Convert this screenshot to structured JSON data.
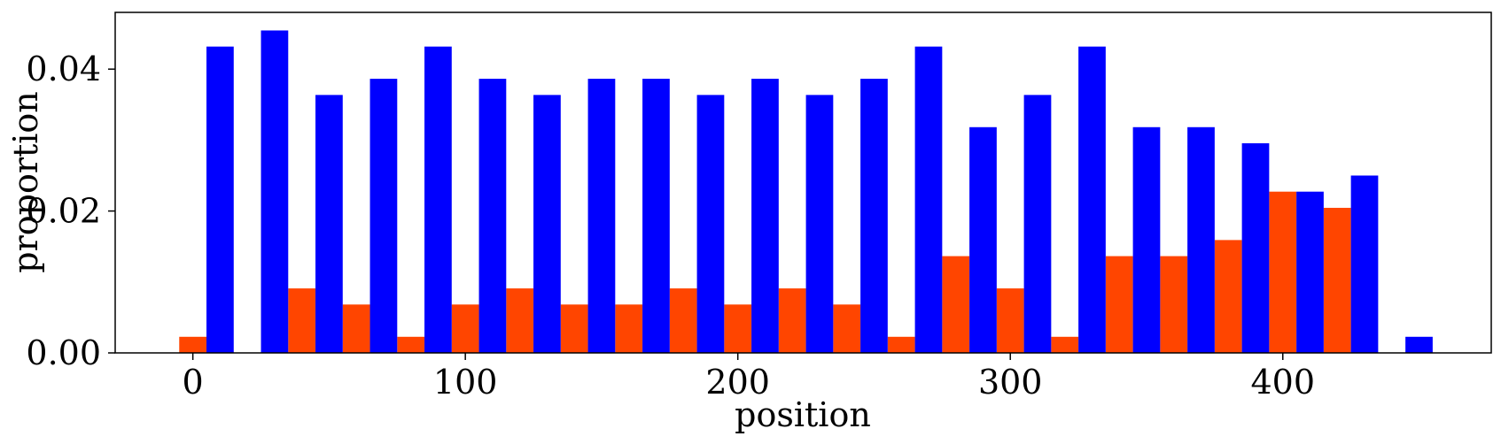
{
  "chart_data": {
    "type": "bar",
    "title": "",
    "xlabel": "position",
    "ylabel": "proportion",
    "xlim": [
      -28.5,
      476.5
    ],
    "ylim": [
      0,
      0.048
    ],
    "x_ticks": [
      0,
      100,
      200,
      300,
      400
    ],
    "x_tick_labels": [
      "0",
      "100",
      "200",
      "300",
      "400"
    ],
    "y_ticks": [
      0,
      0.02,
      0.04
    ],
    "y_tick_labels": [
      "0.00",
      "0.02",
      "0.04"
    ],
    "grid": false,
    "legend": "none",
    "bin_width": 20,
    "bar_width": 10,
    "series": [
      {
        "color": "#FF4500",
        "offset": 0,
        "x": [
          0,
          20,
          40,
          60,
          80,
          100,
          120,
          140,
          160,
          180,
          200,
          220,
          240,
          260,
          280,
          300,
          320,
          340,
          360,
          380,
          400,
          420,
          440
        ],
        "values": [
          0.00227,
          0,
          0.00909,
          0.00682,
          0.00227,
          0.00682,
          0.00909,
          0.00682,
          0.00682,
          0.00909,
          0.00682,
          0.00909,
          0.00682,
          0.00227,
          0.01364,
          0.00909,
          0.00227,
          0.01364,
          0.01364,
          0.01591,
          0.02273,
          0.02045,
          0
        ]
      },
      {
        "color": "#0000FF",
        "offset": 10,
        "x": [
          0,
          20,
          40,
          60,
          80,
          100,
          120,
          140,
          160,
          180,
          200,
          220,
          240,
          260,
          280,
          300,
          320,
          340,
          360,
          380,
          400,
          420,
          440
        ],
        "values": [
          0.04318,
          0.04545,
          0.03636,
          0.03864,
          0.04318,
          0.03864,
          0.03636,
          0.03864,
          0.03864,
          0.03636,
          0.03864,
          0.03636,
          0.03864,
          0.04318,
          0.03182,
          0.03636,
          0.04318,
          0.03182,
          0.03182,
          0.02955,
          0.02273,
          0.025,
          0.00227
        ]
      }
    ]
  }
}
